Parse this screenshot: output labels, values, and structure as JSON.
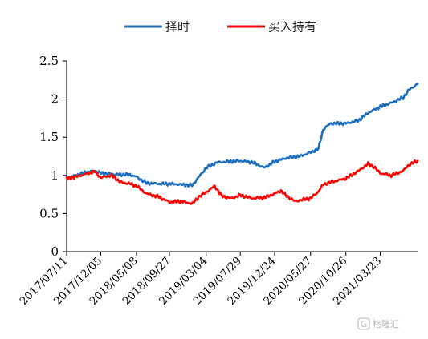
{
  "chart_data": {
    "type": "line",
    "title": "",
    "xlabel": "",
    "ylabel": "",
    "ylim": [
      0,
      2.5
    ],
    "yticks": [
      0,
      0.5,
      1,
      1.5,
      2,
      2.5
    ],
    "ytick_labels": [
      "0",
      "0.5",
      "1",
      "1.5",
      "2",
      "2.5"
    ],
    "xlim": [
      "2017-07-11",
      "2021-08-31"
    ],
    "xtick_labels": [
      "2017/07/11",
      "2017/12/05",
      "2018/05/08",
      "2018/09/27",
      "2019/03/04",
      "2019/07/29",
      "2019/12/24",
      "2020/05/27",
      "2020/10/26",
      "2021/03/23"
    ],
    "grid": false,
    "legend_position": "top",
    "series": [
      {
        "name": "择时",
        "color": "#1f6fbf",
        "points": [
          [
            "2017-07-11",
            0.97
          ],
          [
            "2017-08-20",
            1.0
          ],
          [
            "2017-10-01",
            1.04
          ],
          [
            "2017-11-10",
            1.06
          ],
          [
            "2017-12-05",
            1.03
          ],
          [
            "2018-01-15",
            1.02
          ],
          [
            "2018-03-01",
            1.01
          ],
          [
            "2018-04-10",
            1.01
          ],
          [
            "2018-05-08",
            0.98
          ],
          [
            "2018-06-20",
            0.9
          ],
          [
            "2018-08-10",
            0.89
          ],
          [
            "2018-09-27",
            0.89
          ],
          [
            "2018-11-15",
            0.88
          ],
          [
            "2019-01-03",
            0.87
          ],
          [
            "2019-02-01",
            0.98
          ],
          [
            "2019-03-04",
            1.1
          ],
          [
            "2019-04-20",
            1.17
          ],
          [
            "2019-06-10",
            1.18
          ],
          [
            "2019-07-29",
            1.19
          ],
          [
            "2019-09-20",
            1.17
          ],
          [
            "2019-11-10",
            1.1
          ],
          [
            "2019-12-24",
            1.18
          ],
          [
            "2020-02-15",
            1.23
          ],
          [
            "2020-04-10",
            1.25
          ],
          [
            "2020-05-27",
            1.3
          ],
          [
            "2020-06-30",
            1.35
          ],
          [
            "2020-07-20",
            1.6
          ],
          [
            "2020-08-20",
            1.68
          ],
          [
            "2020-10-26",
            1.68
          ],
          [
            "2020-12-20",
            1.72
          ],
          [
            "2021-01-30",
            1.82
          ],
          [
            "2021-03-23",
            1.9
          ],
          [
            "2021-05-10",
            1.95
          ],
          [
            "2021-06-30",
            2.02
          ],
          [
            "2021-07-25",
            2.12
          ],
          [
            "2021-08-31",
            2.2
          ]
        ]
      },
      {
        "name": "买入持有",
        "color": "#ff0000",
        "points": [
          [
            "2017-07-11",
            0.96
          ],
          [
            "2017-08-20",
            0.98
          ],
          [
            "2017-10-01",
            1.02
          ],
          [
            "2017-11-10",
            1.05
          ],
          [
            "2017-12-05",
            0.97
          ],
          [
            "2018-01-20",
            1.0
          ],
          [
            "2018-03-01",
            0.91
          ],
          [
            "2018-04-10",
            0.89
          ],
          [
            "2018-05-08",
            0.86
          ],
          [
            "2018-06-20",
            0.76
          ],
          [
            "2018-08-10",
            0.72
          ],
          [
            "2018-09-27",
            0.65
          ],
          [
            "2018-11-15",
            0.66
          ],
          [
            "2019-01-03",
            0.63
          ],
          [
            "2019-02-01",
            0.72
          ],
          [
            "2019-03-04",
            0.78
          ],
          [
            "2019-04-10",
            0.86
          ],
          [
            "2019-05-10",
            0.73
          ],
          [
            "2019-06-20",
            0.7
          ],
          [
            "2019-07-29",
            0.74
          ],
          [
            "2019-09-20",
            0.7
          ],
          [
            "2019-11-10",
            0.71
          ],
          [
            "2019-12-24",
            0.76
          ],
          [
            "2020-01-20",
            0.8
          ],
          [
            "2020-02-10",
            0.74
          ],
          [
            "2020-03-20",
            0.66
          ],
          [
            "2020-04-20",
            0.68
          ],
          [
            "2020-05-27",
            0.7
          ],
          [
            "2020-06-30",
            0.79
          ],
          [
            "2020-07-20",
            0.88
          ],
          [
            "2020-08-20",
            0.91
          ],
          [
            "2020-10-26",
            0.96
          ],
          [
            "2020-12-20",
            1.06
          ],
          [
            "2021-01-30",
            1.15
          ],
          [
            "2021-02-20",
            1.12
          ],
          [
            "2021-03-23",
            1.03
          ],
          [
            "2021-05-10",
            1.0
          ],
          [
            "2021-06-30",
            1.06
          ],
          [
            "2021-07-25",
            1.14
          ],
          [
            "2021-08-31",
            1.19
          ]
        ]
      }
    ]
  },
  "watermark": {
    "text": "格隆汇",
    "logo_letter": "G"
  }
}
